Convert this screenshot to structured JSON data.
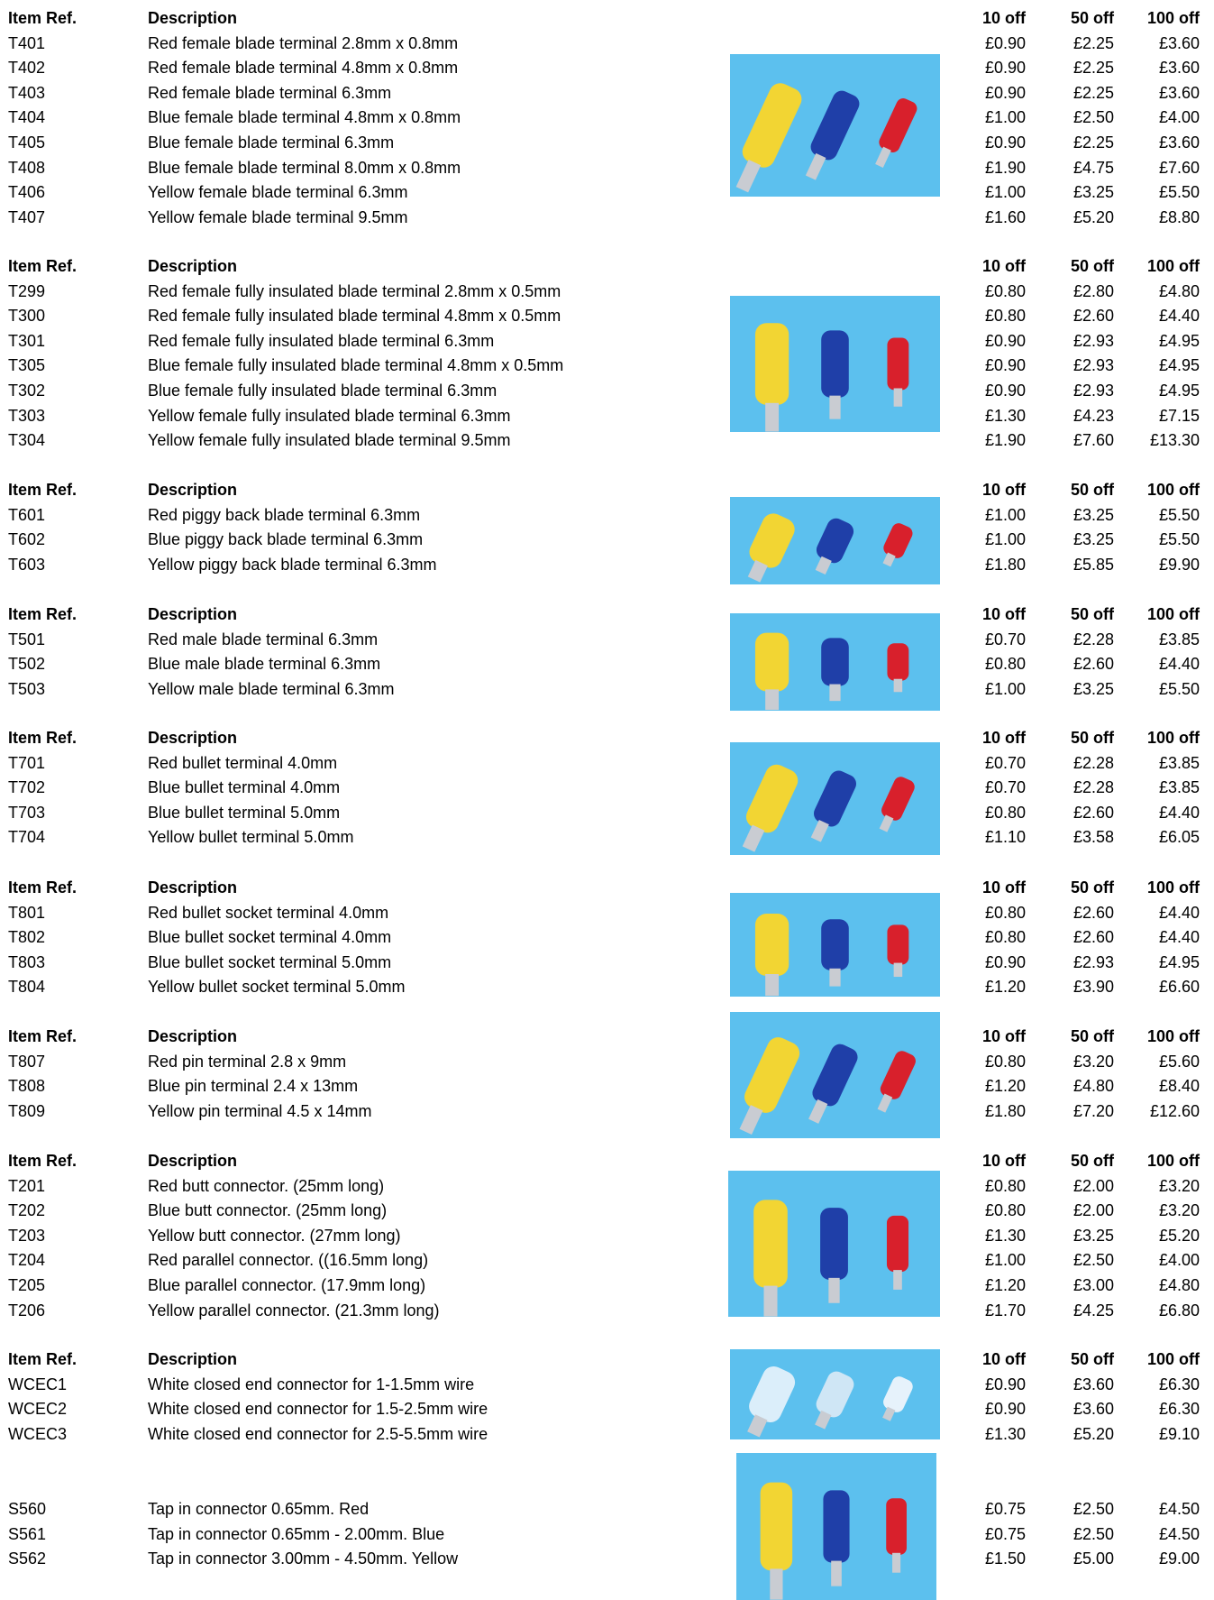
{
  "sections": [
    {
      "header": {
        "ref": "Item Ref.",
        "description": "Description",
        "p10": "10 off",
        "p50": "50 off",
        "p100": "100 off"
      },
      "rows": [
        [
          "T401",
          "Red female blade terminal 2.8mm x 0.8mm",
          "£0.90",
          "£2.25",
          "£3.60"
        ],
        [
          "T402",
          "Red female blade terminal 4.8mm x 0.8mm",
          "£0.90",
          "£2.25",
          "£3.60"
        ],
        [
          "T403",
          "Red female blade terminal 6.3mm",
          "£0.90",
          "£2.25",
          "£3.60"
        ],
        [
          "T404",
          "Blue female blade terminal 4.8mm x 0.8mm",
          "£1.00",
          "£2.50",
          "£4.00"
        ],
        [
          "T405",
          "Blue female blade terminal 6.3mm",
          "£0.90",
          "£2.25",
          "£3.60"
        ],
        [
          "T408",
          "Blue female blade terminal 8.0mm x 0.8mm",
          "£1.90",
          "£4.75",
          "£7.60"
        ],
        [
          "T406",
          "Yellow female blade terminal 6.3mm",
          "£1.00",
          "£3.25",
          "£5.50"
        ],
        [
          "T407",
          "Yellow female blade terminal 9.5mm",
          "£1.60",
          "£5.20",
          "£8.80"
        ]
      ]
    },
    {
      "header": {
        "ref": "Item Ref.",
        "description": "Description",
        "p10": "10 off",
        "p50": "50 off",
        "p100": "100 off"
      },
      "rows": [
        [
          "T299",
          "Red female fully insulated blade terminal 2.8mm x 0.5mm",
          "£0.80",
          "£2.80",
          "£4.80"
        ],
        [
          "T300",
          "Red female fully insulated blade terminal 4.8mm x 0.5mm",
          "£0.80",
          "£2.60",
          "£4.40"
        ],
        [
          "T301",
          "Red female fully insulated blade terminal 6.3mm",
          "£0.90",
          "£2.93",
          "£4.95"
        ],
        [
          "T305",
          "Blue female fully insulated blade terminal 4.8mm x 0.5mm",
          "£0.90",
          "£2.93",
          "£4.95"
        ],
        [
          "T302",
          "Blue female fully insulated blade terminal 6.3mm",
          "£0.90",
          "£2.93",
          "£4.95"
        ],
        [
          "T303",
          "Yellow female fully insulated blade terminal 6.3mm",
          "£1.30",
          "£4.23",
          "£7.15"
        ],
        [
          "T304",
          "Yellow female fully insulated blade terminal 9.5mm",
          "£1.90",
          "£7.60",
          "£13.30"
        ]
      ]
    },
    {
      "header": {
        "ref": "Item Ref.",
        "description": "Description",
        "p10": "10 off",
        "p50": "50 off",
        "p100": "100 off"
      },
      "rows": [
        [
          "T601",
          "Red piggy back blade terminal 6.3mm",
          "£1.00",
          "£3.25",
          "£5.50"
        ],
        [
          "T602",
          "Blue piggy back blade terminal 6.3mm",
          "£1.00",
          "£3.25",
          "£5.50"
        ],
        [
          "T603",
          "Yellow piggy back blade terminal 6.3mm",
          "£1.80",
          "£5.85",
          "£9.90"
        ]
      ]
    },
    {
      "header": {
        "ref": "Item Ref.",
        "description": "Description",
        "p10": "10 off",
        "p50": "50 off",
        "p100": "100 off"
      },
      "rows": [
        [
          "T501",
          "Red male blade terminal 6.3mm",
          "£0.70",
          "£2.28",
          "£3.85"
        ],
        [
          "T502",
          "Blue male blade terminal 6.3mm",
          "£0.80",
          "£2.60",
          "£4.40"
        ],
        [
          "T503",
          "Yellow male blade terminal 6.3mm",
          "£1.00",
          "£3.25",
          "£5.50"
        ]
      ]
    },
    {
      "header": {
        "ref": "Item Ref.",
        "description": "Description",
        "p10": "10 off",
        "p50": "50 off",
        "p100": "100 off"
      },
      "rows": [
        [
          "T701",
          "Red bullet terminal 4.0mm",
          "£0.70",
          "£2.28",
          "£3.85"
        ],
        [
          "T702",
          "Blue bullet terminal 4.0mm",
          "£0.70",
          "£2.28",
          "£3.85"
        ],
        [
          "T703",
          "Blue bullet terminal 5.0mm",
          "£0.80",
          "£2.60",
          "£4.40"
        ],
        [
          "T704",
          "Yellow bullet terminal 5.0mm",
          "£1.10",
          "£3.58",
          "£6.05"
        ]
      ]
    },
    {
      "header": {
        "ref": "Item Ref.",
        "description": "Description",
        "p10": "10 off",
        "p50": "50 off",
        "p100": "100 off"
      },
      "rows": [
        [
          "T801",
          "Red bullet socket terminal 4.0mm",
          "£0.80",
          "£2.60",
          "£4.40"
        ],
        [
          "T802",
          "Blue bullet socket terminal 4.0mm",
          "£0.80",
          "£2.60",
          "£4.40"
        ],
        [
          "T803",
          "Blue bullet socket terminal 5.0mm",
          "£0.90",
          "£2.93",
          "£4.95"
        ],
        [
          "T804",
          "Yellow bullet socket terminal 5.0mm",
          "£1.20",
          "£3.90",
          "£6.60"
        ]
      ]
    },
    {
      "header": {
        "ref": "Item Ref.",
        "description": "Description",
        "p10": "10 off",
        "p50": "50 off",
        "p100": "100 off"
      },
      "rows": [
        [
          "T807",
          "Red pin terminal 2.8 x 9mm",
          "£0.80",
          "£3.20",
          "£5.60"
        ],
        [
          "T808",
          "Blue pin terminal 2.4 x 13mm",
          "£1.20",
          "£4.80",
          "£8.40"
        ],
        [
          "T809",
          "Yellow pin terminal 4.5 x 14mm",
          "£1.80",
          "£7.20",
          "£12.60"
        ]
      ]
    },
    {
      "header": {
        "ref": "Item Ref.",
        "description": "Description",
        "p10": "10 off",
        "p50": "50 off",
        "p100": "100 off"
      },
      "rows": [
        [
          "T201",
          "Red butt connector. (25mm long)",
          "£0.80",
          "£2.00",
          "£3.20"
        ],
        [
          "T202",
          "Blue butt connector. (25mm long)",
          "£0.80",
          "£2.00",
          "£3.20"
        ],
        [
          "T203",
          "Yellow butt connector. (27mm long)",
          "£1.30",
          "£3.25",
          "£5.20"
        ],
        [
          "T204",
          "Red parallel connector. ((16.5mm long)",
          "£1.00",
          "£2.50",
          "£4.00"
        ],
        [
          "T205",
          "Blue parallel connector. (17.9mm long)",
          "£1.20",
          "£3.00",
          "£4.80"
        ],
        [
          "T206",
          "Yellow parallel connector. (21.3mm long)",
          "£1.70",
          "£4.25",
          "£6.80"
        ]
      ]
    },
    {
      "header": {
        "ref": "Item Ref.",
        "description": "Description",
        "p10": "10 off",
        "p50": "50 off",
        "p100": "100 off"
      },
      "rows": [
        [
          "WCEC1",
          "White closed end connector for 1-1.5mm wire",
          "£0.90",
          "£3.60",
          "£6.30"
        ],
        [
          "WCEC2",
          "White closed end connector for 1.5-2.5mm wire",
          "£0.90",
          "£3.60",
          "£6.30"
        ],
        [
          "WCEC3",
          "White closed end connector for 2.5-5.5mm wire",
          "£1.30",
          "£5.20",
          "£9.10"
        ]
      ]
    },
    {
      "rows": [
        [
          "S560",
          "Tap in connector 0.65mm. Red",
          "£0.75",
          "£2.50",
          "£4.50"
        ],
        [
          "S561",
          "Tap in connector 0.65mm - 2.00mm. Blue",
          "£0.75",
          "£2.50",
          "£4.50"
        ],
        [
          "S562",
          "Tap in connector 3.00mm - 4.50mm. Yellow",
          "£1.50",
          "£5.00",
          "£9.00"
        ]
      ]
    }
  ]
}
